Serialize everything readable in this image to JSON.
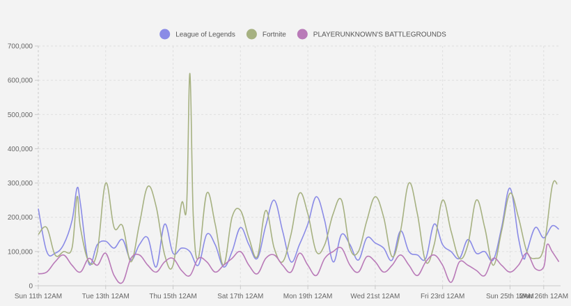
{
  "colors": {
    "background": "#f3f3f3",
    "grid": "#dedede",
    "axis": "#c8c8c8",
    "lol": "#8a8be6",
    "fortnite": "#a6b181",
    "pubg": "#b97ab8"
  },
  "chart_data": {
    "type": "line",
    "title": "",
    "xlabel": "",
    "ylabel": "",
    "grid": true,
    "legend_position": "top-center",
    "ylim": [
      0,
      700000
    ],
    "xlim": [
      0,
      15.5
    ],
    "y_ticks": [
      {
        "value": 0,
        "label": "0"
      },
      {
        "value": 100000,
        "label": "100,000"
      },
      {
        "value": 200000,
        "label": "200,000"
      },
      {
        "value": 300000,
        "label": "300,000"
      },
      {
        "value": 400000,
        "label": "400,000"
      },
      {
        "value": 500000,
        "label": "500,000"
      },
      {
        "value": 600000,
        "label": "600,000"
      },
      {
        "value": 700000,
        "label": "700,000"
      }
    ],
    "x_ticks": [
      {
        "value": 0,
        "label": "Sun 11th 12AM"
      },
      {
        "value": 2,
        "label": "Tue 13th 12AM"
      },
      {
        "value": 4,
        "label": "Thu 15th 12AM"
      },
      {
        "value": 6,
        "label": "Sat 17th 12AM"
      },
      {
        "value": 8,
        "label": "Mon 19th 12AM"
      },
      {
        "value": 10,
        "label": "Wed 21st 12AM"
      },
      {
        "value": 12,
        "label": "Fri 23rd 12AM"
      },
      {
        "value": 14,
        "label": "Sun 25th 12AM"
      },
      {
        "value": 15,
        "label": "Mon 26th 12AM"
      }
    ],
    "series": [
      {
        "name": "League of Legends",
        "color_key": "lol",
        "x": [
          0,
          0.25,
          0.5,
          0.75,
          1.0,
          1.15,
          1.25,
          1.5,
          1.75,
          2.0,
          2.25,
          2.5,
          2.75,
          3.0,
          3.25,
          3.5,
          3.75,
          4.0,
          4.25,
          4.5,
          4.75,
          5.0,
          5.25,
          5.5,
          5.75,
          6.0,
          6.25,
          6.5,
          6.75,
          7.0,
          7.25,
          7.5,
          7.75,
          8.0,
          8.25,
          8.5,
          8.75,
          9.0,
          9.25,
          9.5,
          9.75,
          10.0,
          10.25,
          10.5,
          10.75,
          11.0,
          11.25,
          11.5,
          11.75,
          12.0,
          12.25,
          12.5,
          12.75,
          13.0,
          13.25,
          13.5,
          13.75,
          14.0,
          14.25,
          14.4,
          14.5,
          14.75,
          15.0,
          15.25,
          15.45
        ],
        "values": [
          225000,
          100000,
          95000,
          120000,
          190000,
          285000,
          240000,
          65000,
          120000,
          130000,
          110000,
          135000,
          75000,
          120000,
          140000,
          55000,
          180000,
          95000,
          110000,
          100000,
          60000,
          150000,
          120000,
          55000,
          100000,
          170000,
          120000,
          80000,
          175000,
          250000,
          160000,
          70000,
          120000,
          180000,
          260000,
          190000,
          70000,
          150000,
          120000,
          75000,
          140000,
          125000,
          110000,
          75000,
          160000,
          100000,
          90000,
          80000,
          180000,
          120000,
          100000,
          80000,
          135000,
          95000,
          100000,
          75000,
          170000,
          285000,
          140000,
          80000,
          100000,
          170000,
          140000,
          175000,
          165000
        ]
      },
      {
        "name": "Fortnite",
        "color_key": "fortnite",
        "x": [
          0,
          0.25,
          0.5,
          0.75,
          1.0,
          1.15,
          1.25,
          1.5,
          1.75,
          2.0,
          2.25,
          2.5,
          2.75,
          3.0,
          3.25,
          3.5,
          3.75,
          4.0,
          4.25,
          4.4,
          4.5,
          4.6,
          4.75,
          5.0,
          5.25,
          5.5,
          5.75,
          6.0,
          6.25,
          6.5,
          6.75,
          7.0,
          7.25,
          7.5,
          7.75,
          8.0,
          8.25,
          8.5,
          8.75,
          9.0,
          9.25,
          9.5,
          9.75,
          10.0,
          10.25,
          10.5,
          10.75,
          11.0,
          11.25,
          11.5,
          11.75,
          12.0,
          12.25,
          12.5,
          12.75,
          13.0,
          13.25,
          13.5,
          13.75,
          14.0,
          14.25,
          14.5,
          14.75,
          15.0,
          15.25,
          15.4
        ],
        "values": [
          150000,
          170000,
          90000,
          100000,
          110000,
          260000,
          170000,
          70000,
          100000,
          300000,
          170000,
          175000,
          70000,
          180000,
          290000,
          230000,
          90000,
          60000,
          240000,
          230000,
          620000,
          200000,
          80000,
          270000,
          180000,
          60000,
          200000,
          220000,
          140000,
          85000,
          220000,
          110000,
          70000,
          150000,
          270000,
          210000,
          100000,
          120000,
          210000,
          250000,
          110000,
          100000,
          190000,
          260000,
          200000,
          85000,
          160000,
          300000,
          210000,
          70000,
          120000,
          250000,
          160000,
          80000,
          120000,
          250000,
          170000,
          60000,
          160000,
          270000,
          200000,
          100000,
          80000,
          110000,
          290000,
          297000
        ]
      },
      {
        "name": "PLAYERUNKNOWN'S BATTLEGROUNDS",
        "color_key": "pubg",
        "x": [
          0,
          0.25,
          0.5,
          0.75,
          1.0,
          1.25,
          1.5,
          1.75,
          2.0,
          2.25,
          2.5,
          2.75,
          3.0,
          3.25,
          3.5,
          3.75,
          4.0,
          4.25,
          4.5,
          4.75,
          5.0,
          5.25,
          5.5,
          5.75,
          6.0,
          6.25,
          6.5,
          6.75,
          7.0,
          7.25,
          7.5,
          7.75,
          8.0,
          8.25,
          8.5,
          8.75,
          9.0,
          9.25,
          9.5,
          9.75,
          10.0,
          10.25,
          10.5,
          10.75,
          11.0,
          11.25,
          11.5,
          11.75,
          12.0,
          12.25,
          12.5,
          12.75,
          13.0,
          13.25,
          13.5,
          13.75,
          14.0,
          14.25,
          14.5,
          14.75,
          15.0,
          15.1,
          15.25,
          15.45
        ],
        "values": [
          35000,
          40000,
          70000,
          90000,
          60000,
          40000,
          80000,
          60000,
          95000,
          30000,
          10000,
          80000,
          90000,
          60000,
          40000,
          70000,
          80000,
          45000,
          30000,
          80000,
          70000,
          40000,
          60000,
          80000,
          100000,
          60000,
          35000,
          80000,
          90000,
          60000,
          40000,
          95000,
          60000,
          30000,
          80000,
          100000,
          110000,
          60000,
          40000,
          85000,
          70000,
          40000,
          60000,
          90000,
          60000,
          30000,
          70000,
          90000,
          60000,
          10000,
          70000,
          60000,
          45000,
          30000,
          80000,
          60000,
          40000,
          60000,
          95000,
          50000,
          55000,
          120000,
          100000,
          70000
        ]
      }
    ]
  }
}
